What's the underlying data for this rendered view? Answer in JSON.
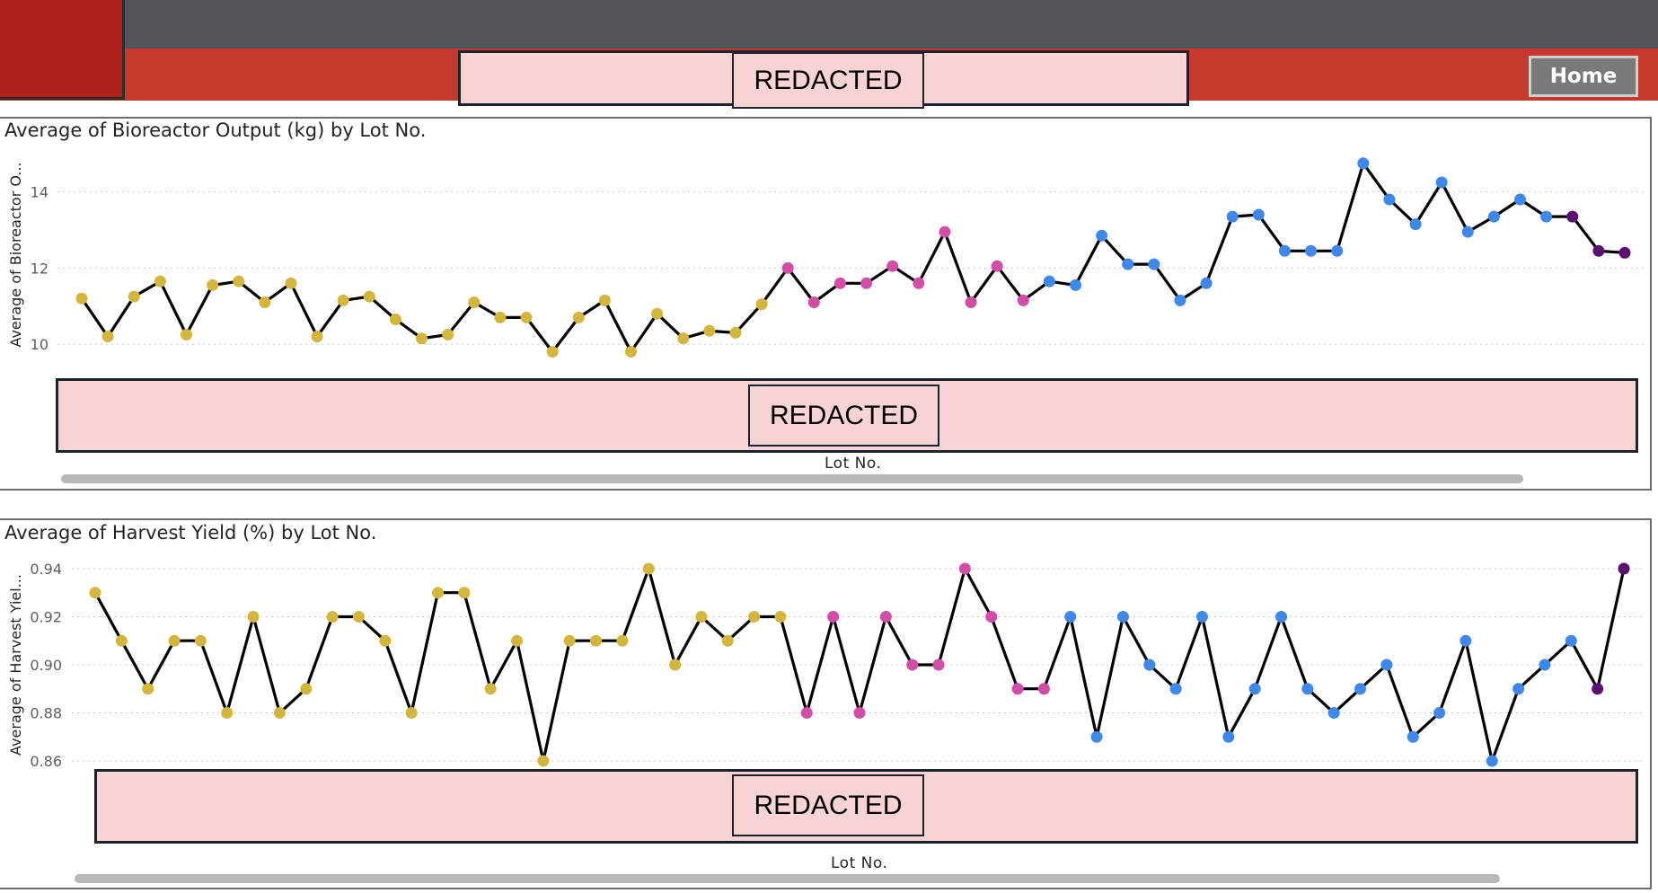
{
  "header": {
    "redacted_label": "REDACTED",
    "home_label": "Home"
  },
  "charts": {
    "output": {
      "title": "Average of Bioreactor Output (kg) by Lot No.",
      "ylabel": "Average of Bioreactor O...",
      "xlabel": "Lot No.",
      "redacted_label": "REDACTED"
    },
    "yield": {
      "title": "Average of Harvest Yield (%) by Lot No.",
      "ylabel": "Average of Harvest Yiel...",
      "xlabel": "Lot No.",
      "redacted_label": "REDACTED"
    }
  },
  "colors": {
    "gold": "#d4b63f",
    "pink": "#d14da8",
    "blue": "#3f88ea",
    "purple": "#5c0f70",
    "line": "#000000"
  },
  "chart_data": [
    {
      "type": "line",
      "title": "Average of Bioreactor Output (kg) by Lot No.",
      "xlabel": "Lot No.",
      "ylabel": "Average of Bioreactor O...",
      "ylim": [
        9.2,
        15.5
      ],
      "yticks": [
        10,
        12,
        14
      ],
      "grid": true,
      "values": [
        11.2,
        10.2,
        11.25,
        11.65,
        10.25,
        11.55,
        11.65,
        11.1,
        11.6,
        10.2,
        11.15,
        11.25,
        10.65,
        10.15,
        10.25,
        11.1,
        10.7,
        10.7,
        9.8,
        10.7,
        11.15,
        9.8,
        10.8,
        10.15,
        10.35,
        10.3,
        11.05,
        12.0,
        11.1,
        11.6,
        11.6,
        12.05,
        11.6,
        12.95,
        11.1,
        12.05,
        11.15,
        11.65,
        11.55,
        12.85,
        12.1,
        12.1,
        11.15,
        11.6,
        13.35,
        13.4,
        12.45,
        12.45,
        12.45,
        14.75,
        13.8,
        13.15,
        14.25,
        12.95,
        13.35,
        13.8,
        13.35,
        13.35,
        12.45,
        12.4
      ],
      "point_colors": [
        "gold",
        "gold",
        "gold",
        "gold",
        "gold",
        "gold",
        "gold",
        "gold",
        "gold",
        "gold",
        "gold",
        "gold",
        "gold",
        "gold",
        "gold",
        "gold",
        "gold",
        "gold",
        "gold",
        "gold",
        "gold",
        "gold",
        "gold",
        "gold",
        "gold",
        "gold",
        "gold",
        "pink",
        "pink",
        "pink",
        "pink",
        "pink",
        "pink",
        "pink",
        "pink",
        "pink",
        "pink",
        "blue",
        "blue",
        "blue",
        "blue",
        "blue",
        "blue",
        "blue",
        "blue",
        "blue",
        "blue",
        "blue",
        "blue",
        "blue",
        "blue",
        "blue",
        "blue",
        "blue",
        "blue",
        "blue",
        "blue",
        "purple",
        "purple",
        "purple"
      ]
    },
    {
      "type": "line",
      "title": "Average of Harvest Yield (%) by Lot No.",
      "xlabel": "Lot No.",
      "ylabel": "Average of Harvest Yiel...",
      "ylim": [
        0.86,
        0.94
      ],
      "yticks": [
        0.86,
        0.88,
        0.9,
        0.92,
        0.94
      ],
      "yticklabels": [
        "0.86",
        "0.88",
        "0.90",
        "0.92",
        "0.94"
      ],
      "grid": true,
      "values": [
        0.93,
        0.91,
        0.89,
        0.91,
        0.91,
        0.88,
        0.92,
        0.88,
        0.89,
        0.92,
        0.92,
        0.91,
        0.88,
        0.93,
        0.93,
        0.89,
        0.91,
        0.86,
        0.91,
        0.91,
        0.91,
        0.94,
        0.9,
        0.92,
        0.91,
        0.92,
        0.92,
        0.88,
        0.92,
        0.88,
        0.92,
        0.9,
        0.9,
        0.94,
        0.92,
        0.89,
        0.89,
        0.92,
        0.87,
        0.92,
        0.9,
        0.89,
        0.92,
        0.87,
        0.89,
        0.92,
        0.89,
        0.88,
        0.89,
        0.9,
        0.87,
        0.88,
        0.91,
        0.86,
        0.89,
        0.9,
        0.91,
        0.89,
        0.94
      ],
      "point_colors": [
        "gold",
        "gold",
        "gold",
        "gold",
        "gold",
        "gold",
        "gold",
        "gold",
        "gold",
        "gold",
        "gold",
        "gold",
        "gold",
        "gold",
        "gold",
        "gold",
        "gold",
        "gold",
        "gold",
        "gold",
        "gold",
        "gold",
        "gold",
        "gold",
        "gold",
        "gold",
        "gold",
        "pink",
        "pink",
        "pink",
        "pink",
        "pink",
        "pink",
        "pink",
        "pink",
        "pink",
        "pink",
        "blue",
        "blue",
        "blue",
        "blue",
        "blue",
        "blue",
        "blue",
        "blue",
        "blue",
        "blue",
        "blue",
        "blue",
        "blue",
        "blue",
        "blue",
        "blue",
        "blue",
        "blue",
        "blue",
        "blue",
        "purple",
        "purple"
      ]
    }
  ]
}
